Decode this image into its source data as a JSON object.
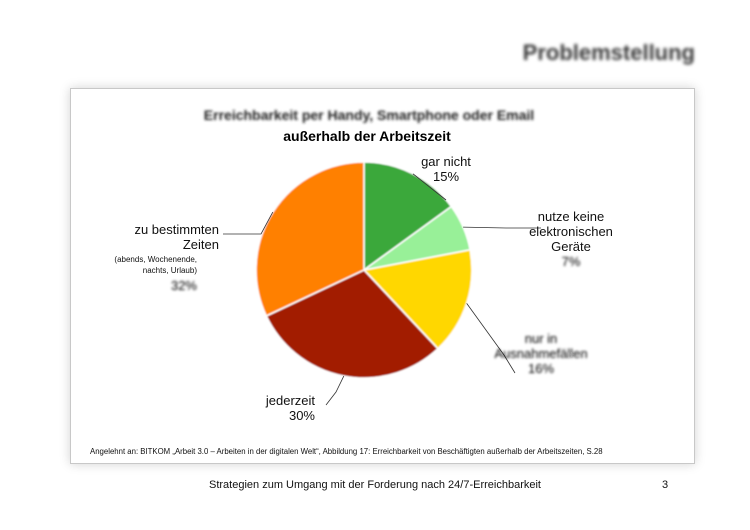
{
  "slide": {
    "title": "Problemstellung",
    "footer": "Strategien zum Umgang mit der Forderung nach 24/7-Erreichbarkeit",
    "page_number": "3"
  },
  "chart_data": {
    "type": "pie",
    "title": "Erreichbarkeit per Handy, Smartphone oder Email",
    "subtitle": "außerhalb der Arbeitszeit",
    "source": "Angelehnt an: BITKOM „Arbeit 3.0 – Arbeiten in der digitalen Welt“, Abbildung 17: Erreichbarkeit von Beschäftigten außerhalb der Arbeitszeiten, S.28",
    "slices": [
      {
        "label": [
          "gar nicht"
        ],
        "value": 15,
        "value_label": "15%",
        "color": "#3aa83a"
      },
      {
        "label": [
          "nutze keine",
          "elektronischen",
          "Geräte"
        ],
        "value": 7,
        "value_label": "7%",
        "color": "#98f098"
      },
      {
        "label": [
          "nur in",
          "Ausnahmefällen"
        ],
        "value": 16,
        "value_label": "16%",
        "color": "#ffd700"
      },
      {
        "label": [
          "jederzeit"
        ],
        "value": 30,
        "value_label": "30%",
        "color": "#a21a00"
      },
      {
        "label": [
          "zu bestimmten",
          "Zeiten"
        ],
        "sublabel": [
          "(abends, Wochenende,",
          "nachts, Urlaub)"
        ],
        "value": 32,
        "value_label": "32%",
        "color": "#ff8000"
      }
    ]
  }
}
